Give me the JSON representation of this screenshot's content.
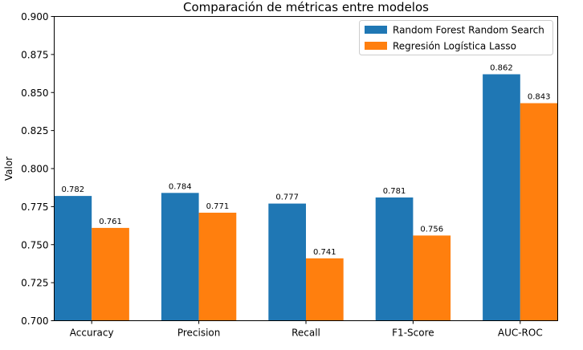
{
  "chart_data": {
    "type": "bar",
    "title": "Comparación de métricas entre modelos",
    "xlabel": "",
    "ylabel": "Valor",
    "ylim": [
      0.7,
      0.9
    ],
    "yticks": [
      "0.700",
      "0.725",
      "0.750",
      "0.775",
      "0.800",
      "0.825",
      "0.850",
      "0.875",
      "0.900"
    ],
    "categories": [
      "Accuracy",
      "Precision",
      "Recall",
      "F1-Score",
      "AUC-ROC"
    ],
    "series": [
      {
        "name": "Random Forest Random Search",
        "color": "#1f77b4",
        "values": [
          0.782,
          0.784,
          0.777,
          0.781,
          0.862
        ],
        "labels": [
          "0.782",
          "0.784",
          "0.777",
          "0.781",
          "0.862"
        ]
      },
      {
        "name": "Regresión Logística Lasso",
        "color": "#ff7f0e",
        "values": [
          0.761,
          0.771,
          0.741,
          0.756,
          0.843
        ],
        "labels": [
          "0.761",
          "0.771",
          "0.741",
          "0.756",
          "0.843"
        ]
      }
    ],
    "grid": false,
    "legend_position": "top-right"
  }
}
